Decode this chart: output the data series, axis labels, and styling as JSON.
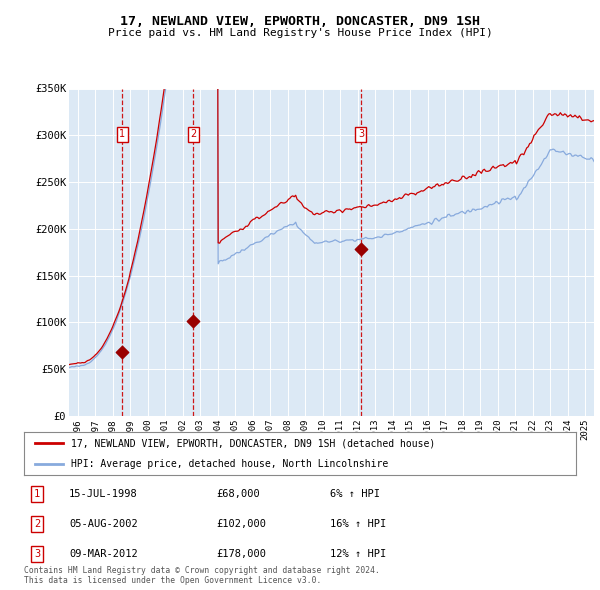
{
  "title": "17, NEWLAND VIEW, EPWORTH, DONCASTER, DN9 1SH",
  "subtitle": "Price paid vs. HM Land Registry's House Price Index (HPI)",
  "background_color": "#ffffff",
  "plot_bg_color": "#dce9f5",
  "grid_color": "#ffffff",
  "sale_color": "#cc0000",
  "hpi_color": "#88aadd",
  "sale_marker_color": "#990000",
  "dashed_line_color": "#cc0000",
  "label_box_color": "#cc0000",
  "xmin": 1995.5,
  "xmax": 2025.5,
  "ymin": 0,
  "ymax": 350000,
  "yticks": [
    0,
    50000,
    100000,
    150000,
    200000,
    250000,
    300000,
    350000
  ],
  "ytick_labels": [
    "£0",
    "£50K",
    "£100K",
    "£150K",
    "£200K",
    "£250K",
    "£300K",
    "£350K"
  ],
  "sale_dates": [
    1998.54,
    2002.59,
    2012.18
  ],
  "sale_prices": [
    68000,
    102000,
    178000
  ],
  "sale_labels": [
    "1",
    "2",
    "3"
  ],
  "legend_sale_label": "17, NEWLAND VIEW, EPWORTH, DONCASTER, DN9 1SH (detached house)",
  "legend_hpi_label": "HPI: Average price, detached house, North Lincolnshire",
  "table_rows": [
    [
      "1",
      "15-JUL-1998",
      "£68,000",
      "6% ↑ HPI"
    ],
    [
      "2",
      "05-AUG-2002",
      "£102,000",
      "16% ↑ HPI"
    ],
    [
      "3",
      "09-MAR-2012",
      "£178,000",
      "12% ↑ HPI"
    ]
  ],
  "footer": "Contains HM Land Registry data © Crown copyright and database right 2024.\nThis data is licensed under the Open Government Licence v3.0."
}
